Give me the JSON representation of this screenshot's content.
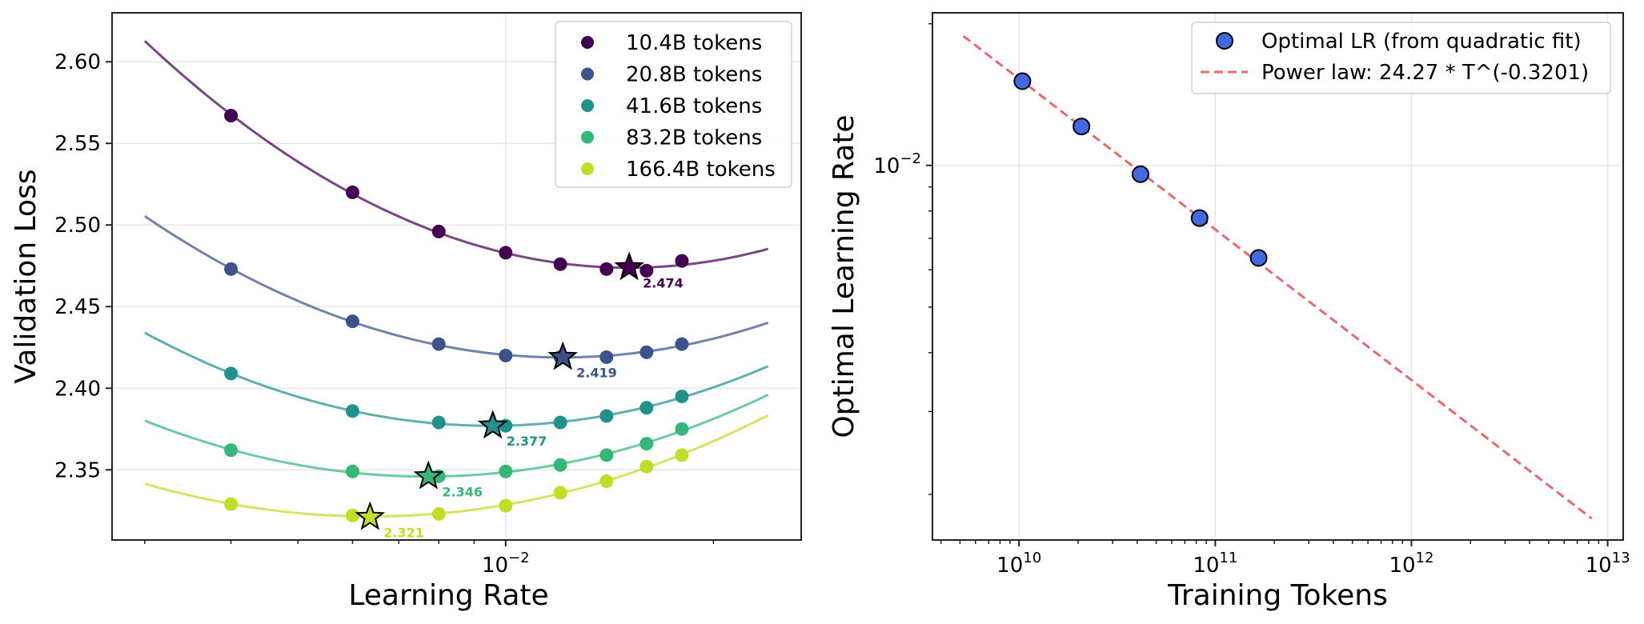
{
  "chart_data": [
    {
      "type": "line",
      "title": "",
      "xlabel": "Learning Rate",
      "ylabel": "Validation Loss",
      "xscale": "log",
      "xlim": [
        0.00269,
        0.0268
      ],
      "ylim": [
        2.307,
        2.63
      ],
      "grid": true,
      "x_tick_labels": [
        {
          "value": 0.01,
          "mantissa": "10",
          "exp": "−2"
        }
      ],
      "y_ticks": [
        2.35,
        2.4,
        2.45,
        2.5,
        2.55,
        2.6
      ],
      "y_tick_labels": [
        "2.35",
        "2.40",
        "2.45",
        "2.50",
        "2.55",
        "2.60"
      ],
      "legend_position": "top-right",
      "fit_range": [
        0.003,
        0.024
      ],
      "x": [
        0.004,
        0.006,
        0.008,
        0.01,
        0.012,
        0.014,
        0.016,
        0.018
      ],
      "series": [
        {
          "name": "10.4B tokens",
          "color": "#440154",
          "values": [
            2.567,
            2.52,
            2.496,
            2.483,
            2.476,
            2.473,
            2.472,
            2.478
          ],
          "optimum_lr": 0.0151,
          "optimum_loss": 2.474,
          "optimum_label": "2.474"
        },
        {
          "name": "20.8B tokens",
          "color": "#3b528b",
          "values": [
            2.473,
            2.441,
            2.427,
            2.42,
            2.419,
            2.419,
            2.422,
            2.427
          ],
          "optimum_lr": 0.0121,
          "optimum_loss": 2.419,
          "optimum_label": "2.419"
        },
        {
          "name": "41.6B tokens",
          "color": "#21918c",
          "values": [
            2.409,
            2.386,
            2.379,
            2.377,
            2.379,
            2.383,
            2.388,
            2.395
          ],
          "optimum_lr": 0.00958,
          "optimum_loss": 2.377,
          "optimum_label": "2.377"
        },
        {
          "name": "83.2B tokens",
          "color": "#35b779",
          "values": [
            2.362,
            2.349,
            2.346,
            2.349,
            2.353,
            2.359,
            2.366,
            2.375
          ],
          "optimum_lr": 0.00773,
          "optimum_loss": 2.346,
          "optimum_label": "2.346"
        },
        {
          "name": "166.4B tokens",
          "color": "#bddf26",
          "values": [
            2.329,
            2.322,
            2.323,
            2.328,
            2.336,
            2.343,
            2.352,
            2.359
          ],
          "optimum_lr": 0.00636,
          "optimum_loss": 2.321,
          "optimum_label": "2.321"
        }
      ]
    },
    {
      "type": "scatter",
      "title": "",
      "xlabel": "Training Tokens",
      "ylabel": "Optimal Learning Rate",
      "xscale": "log",
      "yscale": "log",
      "xlim": [
        3620000000.0,
        12000000000000.0
      ],
      "ylim": [
        0.0016,
        0.0211
      ],
      "grid": true,
      "x_tick_labels": [
        {
          "value": 10000000000.0,
          "mantissa": "10",
          "exp": "10"
        },
        {
          "value": 100000000000.0,
          "mantissa": "10",
          "exp": "11"
        },
        {
          "value": 1000000000000.0,
          "mantissa": "10",
          "exp": "12"
        },
        {
          "value": 10000000000000.0,
          "mantissa": "10",
          "exp": "13"
        }
      ],
      "y_tick_labels": [
        {
          "value": 0.01,
          "mantissa": "10",
          "exp": "−2"
        }
      ],
      "legend_position": "top-right",
      "points": {
        "name": "Optimal LR (from quadratic fit)",
        "color": "#4169e1",
        "x": [
          10400000000.0,
          20800000000.0,
          41600000000.0,
          83200000000.0,
          166400000000.0
        ],
        "y": [
          0.0151,
          0.0121,
          0.00958,
          0.00773,
          0.00636
        ]
      },
      "fit": {
        "name": "Power law: 24.27 * T^(-0.3201)",
        "color": "#e8696b",
        "coef": 24.27,
        "exponent": -0.3201,
        "x_range": [
          5200000000.0,
          8300000000000.0
        ]
      }
    }
  ]
}
